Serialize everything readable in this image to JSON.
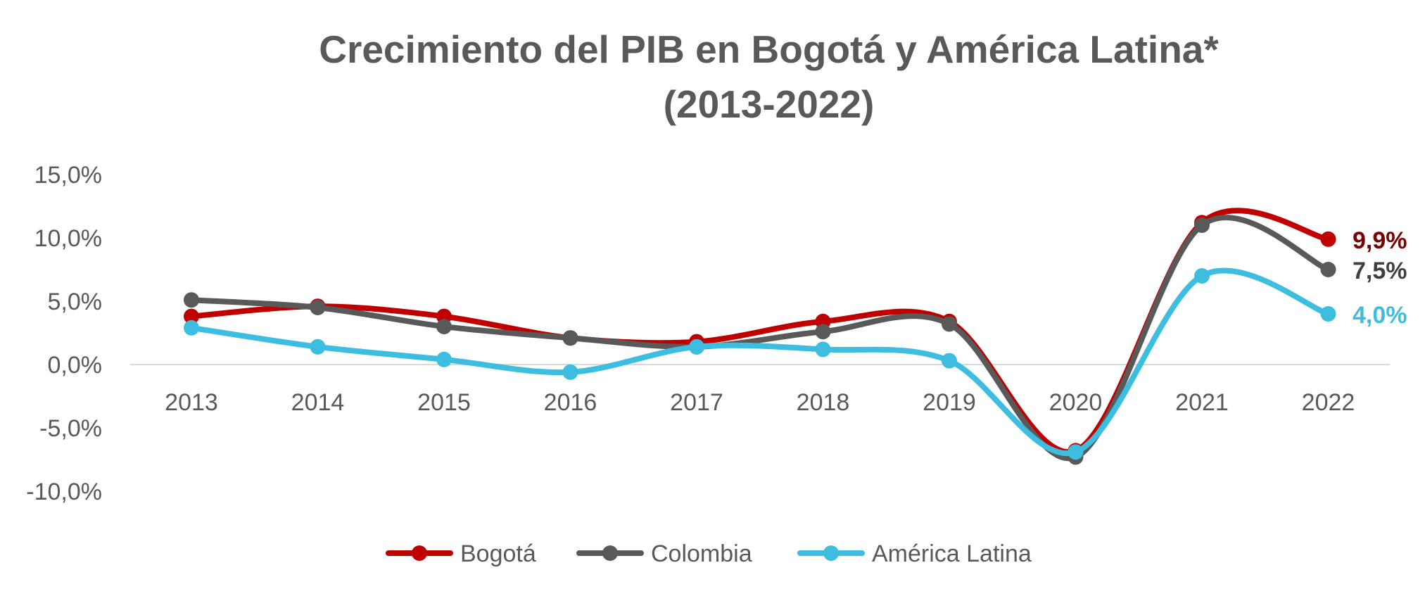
{
  "chart_data": {
    "type": "line",
    "title": "Crecimiento del PIB en Bogotá y América Latina*",
    "subtitle": "(2013-2022)",
    "categories": [
      "2013",
      "2014",
      "2015",
      "2016",
      "2017",
      "2018",
      "2019",
      "2020",
      "2021",
      "2022"
    ],
    "y_ticks": [
      15,
      10,
      5,
      0,
      -5,
      -10
    ],
    "y_tick_labels": [
      "15,0%",
      "10,0%",
      "5,0%",
      "0,0%",
      "-5,0%",
      "-10,0%"
    ],
    "ylim": [
      -10,
      15
    ],
    "xlabel": "",
    "ylabel": "",
    "grid": false,
    "legend_position": "bottom",
    "smooth": true,
    "series": [
      {
        "name": "Bogotá",
        "color": "#C00000",
        "label_color": "#7B0000",
        "values": [
          3.8,
          4.6,
          3.8,
          2.1,
          1.8,
          3.4,
          3.4,
          -6.8,
          11.2,
          9.9
        ],
        "end_label": "9,9%"
      },
      {
        "name": "Colombia",
        "color": "#595959",
        "label_color": "#404040",
        "values": [
          5.1,
          4.5,
          3.0,
          2.1,
          1.4,
          2.6,
          3.2,
          -7.3,
          11.0,
          7.5
        ],
        "end_label": "7,5%"
      },
      {
        "name": "América Latina",
        "color": "#3DBDE0",
        "label_color": "#3DBDE0",
        "values": [
          2.9,
          1.4,
          0.4,
          -0.6,
          1.4,
          1.2,
          0.3,
          -6.9,
          7.0,
          4.0
        ],
        "end_label": "4,0%"
      }
    ]
  }
}
